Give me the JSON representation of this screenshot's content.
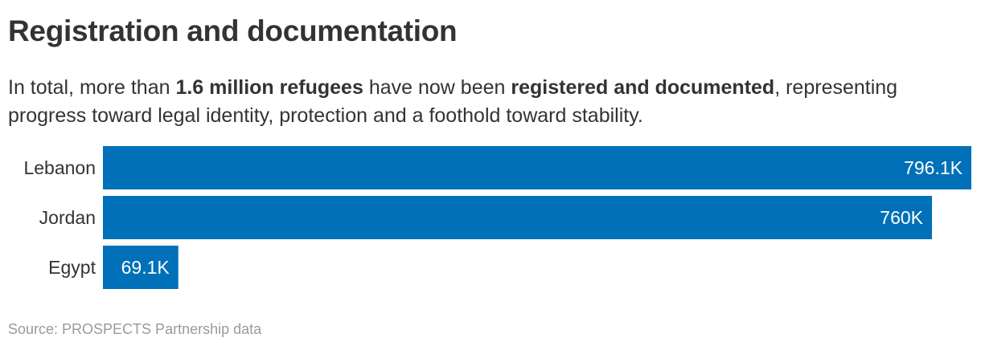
{
  "title": "Registration and documentation",
  "subtitle": {
    "part1": "In total, more than ",
    "bold1": "1.6 million refugees",
    "part2": " have now been ",
    "bold2": "registered and documented",
    "part3": ", representing progress toward legal identity, protection and a foothold toward stability."
  },
  "source": "Source: PROSPECTS Partnership data",
  "colors": {
    "bar": "#0070b8",
    "text": "#333333",
    "source": "#9a9a9a"
  },
  "chart_data": {
    "type": "bar",
    "orientation": "horizontal",
    "categories": [
      "Lebanon",
      "Jordan",
      "Egypt"
    ],
    "values": [
      796100,
      760000,
      69100
    ],
    "value_labels": [
      "796.1K",
      "760K",
      "69.1K"
    ],
    "title": "",
    "xlabel": "",
    "ylabel": "",
    "xlim": [
      0,
      796100
    ],
    "grid": false,
    "legend": "none"
  }
}
